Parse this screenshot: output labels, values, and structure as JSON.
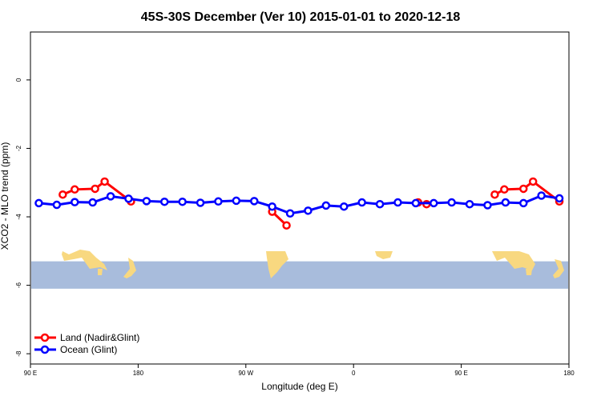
{
  "chart_data": {
    "type": "line",
    "title": "45S-30S December (Ver 10)   2015-01-01 to 2020-12-18",
    "xlabel": "Longitude (deg E)",
    "ylabel": "XCO2 - MLO trend (ppm)",
    "xlim": [
      90,
      540
    ],
    "ylim": [
      -8.3,
      1.4
    ],
    "x_ticks": [
      {
        "value": 90,
        "label": "90 E"
      },
      {
        "value": 180,
        "label": "180"
      },
      {
        "value": 270,
        "label": "90 W"
      },
      {
        "value": 360,
        "label": "0"
      },
      {
        "value": 450,
        "label": "90 E"
      },
      {
        "value": 540,
        "label": "180"
      }
    ],
    "y_ticks": [
      {
        "value": 0,
        "label": "0"
      },
      {
        "value": -2,
        "label": "-2"
      },
      {
        "value": -4,
        "label": "-4"
      },
      {
        "value": -6,
        "label": "-6"
      },
      {
        "value": -8,
        "label": "-8"
      }
    ],
    "map_band": {
      "y_top": -5.3,
      "y_bottom": -6.1,
      "ocean_color": "#a8bcdc",
      "land_color": "#f8d880"
    },
    "legend_position": "bottom-left",
    "series": [
      {
        "name": "Land (Nadir&Glint)",
        "color": "#ff0000",
        "segments": [
          [
            [
              117,
              -3.35
            ],
            [
              127,
              -3.2
            ],
            [
              144,
              -3.18
            ],
            [
              152,
              -2.97
            ],
            [
              174,
              -3.55
            ]
          ],
          [
            [
              292,
              -3.85
            ],
            [
              304,
              -4.25
            ]
          ],
          [
            [
              414,
              -3.58
            ],
            [
              421,
              -3.63
            ]
          ],
          [
            [
              478,
              -3.35
            ],
            [
              486,
              -3.2
            ],
            [
              502,
              -3.18
            ],
            [
              510,
              -2.97
            ],
            [
              532,
              -3.55
            ]
          ]
        ]
      },
      {
        "name": "Ocean (Glint)",
        "color": "#0000ff",
        "segments": [
          [
            [
              97,
              -3.6
            ],
            [
              112,
              -3.65
            ],
            [
              127,
              -3.57
            ],
            [
              142,
              -3.58
            ],
            [
              157,
              -3.4
            ],
            [
              172,
              -3.47
            ],
            [
              187,
              -3.54
            ],
            [
              202,
              -3.56
            ],
            [
              217,
              -3.56
            ],
            [
              232,
              -3.59
            ],
            [
              247,
              -3.55
            ],
            [
              262,
              -3.53
            ],
            [
              277,
              -3.54
            ],
            [
              292,
              -3.7
            ],
            [
              307,
              -3.9
            ],
            [
              322,
              -3.82
            ],
            [
              337,
              -3.67
            ],
            [
              352,
              -3.7
            ],
            [
              367,
              -3.58
            ],
            [
              382,
              -3.63
            ],
            [
              397,
              -3.58
            ],
            [
              412,
              -3.6
            ],
            [
              427,
              -3.6
            ],
            [
              442,
              -3.58
            ],
            [
              457,
              -3.63
            ],
            [
              472,
              -3.66
            ],
            [
              487,
              -3.58
            ],
            [
              502,
              -3.6
            ],
            [
              517,
              -3.38
            ],
            [
              532,
              -3.46
            ]
          ]
        ]
      }
    ]
  }
}
